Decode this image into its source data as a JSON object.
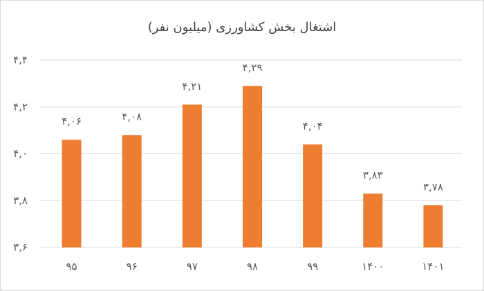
{
  "chart_data": {
    "type": "bar",
    "title": "اشتغال بخش کشاورزی (میلیون نفر)",
    "categories": [
      "۹۵",
      "۹۶",
      "۹۷",
      "۹۸",
      "۹۹",
      "۱۴۰۰",
      "۱۴۰۱"
    ],
    "values": [
      4.06,
      4.08,
      4.21,
      4.29,
      4.04,
      3.83,
      3.78
    ],
    "value_labels": [
      "۴,۰۶",
      "۴,۰۸",
      "۴,۲۱",
      "۴,۲۹",
      "۴,۰۴",
      "۳,۸۳",
      "۳,۷۸"
    ],
    "color": "#ed7d31",
    "ylim": [
      3.6,
      4.4
    ],
    "yticks": [
      {
        "value": 3.6,
        "label": "۳,۶"
      },
      {
        "value": 3.8,
        "label": "۳,۸"
      },
      {
        "value": 4.0,
        "label": "۴,۰"
      },
      {
        "value": 4.2,
        "label": "۴,۲"
      },
      {
        "value": 4.4,
        "label": "۴,۴"
      }
    ],
    "grid": true
  }
}
